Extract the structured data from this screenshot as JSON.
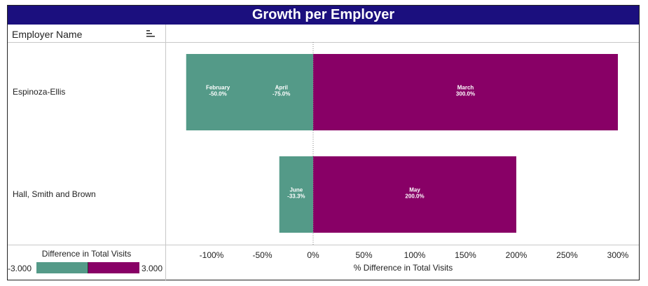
{
  "title": "Growth per Employer",
  "column_header": "Employer Name",
  "colors": {
    "title_bg": "#1b0f7e",
    "negative": "#549a88",
    "positive": "#880066",
    "zero_line": "#888888"
  },
  "icons": {
    "sort": "sort-descending-icon"
  },
  "legend": {
    "title": "Difference in Total Visits",
    "min_label": "-3.000",
    "max_label": "3.000"
  },
  "chart_data": {
    "type": "bar",
    "orientation": "horizontal",
    "stacked": "diverging",
    "title": "Growth per Employer",
    "xlabel": "% Difference in Total Visits",
    "ylabel": "Employer Name",
    "xlim": [
      -140,
      310
    ],
    "x_ticks": [
      -100,
      -50,
      0,
      50,
      100,
      150,
      200,
      250,
      300
    ],
    "x_tick_labels": [
      "-100%",
      "-50%",
      "0%",
      "50%",
      "100%",
      "150%",
      "200%",
      "250%",
      "300%"
    ],
    "categories": [
      "Espinoza-Ellis",
      "Hall, Smith and Brown"
    ],
    "segments": [
      {
        "category": "Espinoza-Ellis",
        "month": "February",
        "value": -50.0,
        "label": "-50.0%"
      },
      {
        "category": "Espinoza-Ellis",
        "month": "April",
        "value": -75.0,
        "label": "-75.0%"
      },
      {
        "category": "Espinoza-Ellis",
        "month": "March",
        "value": 300.0,
        "label": "300.0%"
      },
      {
        "category": "Hall, Smith and Brown",
        "month": "June",
        "value": -33.3,
        "label": "-33.3%"
      },
      {
        "category": "Hall, Smith and Brown",
        "month": "May",
        "value": 200.0,
        "label": "200.0%"
      }
    ],
    "grid": false,
    "legend_position": "bottom-left"
  }
}
